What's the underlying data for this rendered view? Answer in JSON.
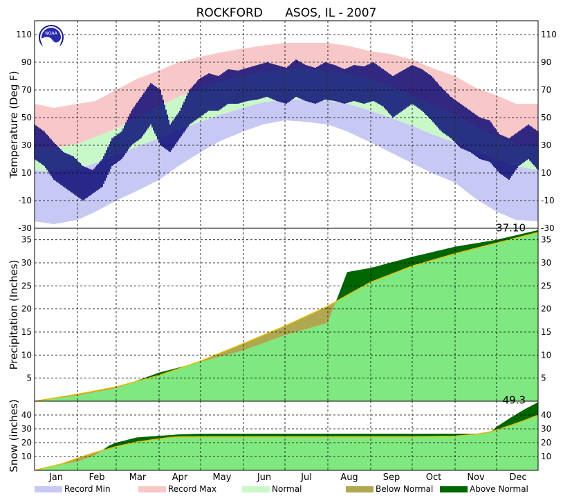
{
  "chart_data": [
    {
      "type": "area",
      "panel": "temperature",
      "title": "ROCKFORD      ASOS, IL - 2007",
      "ylabel": "Temperature (Deg F)",
      "ylim": [
        -30,
        120
      ],
      "yticks": [
        -30,
        -10,
        10,
        30,
        50,
        70,
        90,
        110
      ],
      "grid": true,
      "doy": [
        1,
        15,
        32,
        45,
        60,
        75,
        91,
        105,
        121,
        135,
        152,
        166,
        182,
        196,
        213,
        227,
        244,
        258,
        274,
        288,
        305,
        319,
        335,
        349,
        365
      ],
      "series": [
        {
          "name": "Record Max",
          "values": [
            60,
            57,
            60,
            62,
            70,
            78,
            84,
            90,
            94,
            97,
            100,
            102,
            104,
            104,
            104,
            102,
            98,
            96,
            92,
            86,
            80,
            72,
            66,
            60,
            60
          ]
        },
        {
          "name": "Normal High",
          "values": [
            29,
            28,
            31,
            36,
            42,
            50,
            58,
            65,
            71,
            76,
            80,
            83,
            85,
            85,
            84,
            82,
            78,
            73,
            66,
            59,
            52,
            44,
            36,
            31,
            29
          ]
        },
        {
          "name": "Normal Low",
          "values": [
            12,
            11,
            13,
            17,
            23,
            29,
            35,
            41,
            47,
            52,
            57,
            61,
            63,
            63,
            62,
            60,
            55,
            50,
            44,
            38,
            32,
            26,
            20,
            15,
            12
          ]
        },
        {
          "name": "Record Min",
          "values": [
            -25,
            -27,
            -24,
            -18,
            -10,
            -3,
            5,
            15,
            25,
            33,
            40,
            45,
            48,
            47,
            45,
            40,
            32,
            25,
            17,
            10,
            3,
            -8,
            -18,
            -24,
            -25
          ]
        }
      ],
      "observed": {
        "doy": [
          1,
          8,
          15,
          22,
          29,
          36,
          43,
          50,
          57,
          64,
          71,
          78,
          85,
          92,
          99,
          106,
          113,
          120,
          127,
          134,
          141,
          148,
          155,
          162,
          169,
          176,
          183,
          190,
          197,
          204,
          211,
          218,
          225,
          232,
          239,
          246,
          253,
          260,
          267,
          274,
          281,
          288,
          295,
          302,
          309,
          316,
          323,
          330,
          337,
          344,
          351,
          358,
          365
        ],
        "high": [
          45,
          40,
          32,
          25,
          22,
          15,
          12,
          20,
          35,
          40,
          55,
          65,
          75,
          70,
          45,
          55,
          70,
          78,
          82,
          80,
          85,
          84,
          86,
          88,
          90,
          88,
          86,
          92,
          88,
          86,
          90,
          88,
          85,
          88,
          87,
          90,
          85,
          80,
          84,
          88,
          85,
          80,
          72,
          65,
          60,
          55,
          50,
          48,
          38,
          35,
          40,
          45,
          40
        ],
        "low": [
          20,
          15,
          5,
          0,
          -5,
          -10,
          -5,
          0,
          15,
          20,
          30,
          35,
          45,
          30,
          25,
          35,
          45,
          50,
          55,
          55,
          60,
          60,
          62,
          63,
          65,
          62,
          60,
          65,
          62,
          60,
          63,
          62,
          60,
          62,
          60,
          62,
          58,
          50,
          55,
          60,
          55,
          48,
          40,
          35,
          28,
          25,
          20,
          18,
          10,
          5,
          15,
          20,
          12
        ]
      }
    },
    {
      "type": "area",
      "panel": "precipitation",
      "ylabel": "Precipitation (Inches)",
      "ylim": [
        0,
        37.5
      ],
      "yticks": [
        5,
        10,
        15,
        20,
        25,
        30,
        35
      ],
      "grid": true,
      "annotation": "37.10",
      "doy": [
        1,
        32,
        60,
        91,
        121,
        152,
        182,
        213,
        227,
        244,
        274,
        305,
        335,
        365
      ],
      "normal": [
        0,
        1.5,
        3.1,
        5.6,
        8.7,
        12.5,
        16.3,
        20.6,
        23.0,
        25.8,
        29.3,
        32.0,
        34.3,
        36.6
      ],
      "observed": [
        0,
        1.2,
        2.8,
        6.2,
        8.5,
        11.0,
        14.3,
        17.0,
        28.0,
        28.9,
        31.3,
        33.5,
        35.0,
        37.1
      ]
    },
    {
      "type": "area",
      "panel": "snow",
      "ylabel": "Snow (inches)",
      "ylim": [
        0,
        50
      ],
      "yticks": [
        10,
        20,
        30,
        40
      ],
      "grid": true,
      "annotation": "49.3",
      "doy": [
        1,
        20,
        32,
        45,
        55,
        60,
        75,
        91,
        100,
        105,
        121,
        152,
        182,
        213,
        244,
        274,
        305,
        320,
        330,
        335,
        345,
        355,
        365
      ],
      "normal": [
        0,
        4.5,
        8.8,
        13.0,
        15.7,
        17.2,
        20.5,
        22.8,
        23.9,
        24.2,
        24.3,
        24.3,
        24.3,
        24.3,
        24.3,
        24.3,
        24.7,
        26.1,
        27.7,
        29.2,
        32.5,
        36.0,
        40.0
      ],
      "observed": [
        0,
        4.0,
        6.3,
        11.0,
        18.0,
        20.0,
        23.8,
        25.0,
        25.5,
        26.0,
        26.5,
        26.5,
        26.5,
        26.5,
        26.5,
        26.5,
        26.5,
        26.5,
        27.0,
        31.5,
        38.0,
        44.0,
        49.3
      ]
    }
  ],
  "x_axis": {
    "months": [
      "Jan",
      "Feb",
      "Mar",
      "Apr",
      "May",
      "Jun",
      "Jul",
      "Aug",
      "Sep",
      "Oct",
      "Nov",
      "Dec"
    ],
    "month_start_doy": [
      1,
      32,
      60,
      91,
      121,
      152,
      182,
      213,
      244,
      274,
      305,
      335
    ]
  },
  "legend": {
    "placement": "bottom",
    "items": [
      {
        "label": "Record Min",
        "color": "#c8c8f5"
      },
      {
        "label": "Record Max",
        "color": "#f8c8c8"
      },
      {
        "label": "Normal",
        "color": "#c8f8c8"
      },
      {
        "label": "Below Normal",
        "color": "#b0a850"
      },
      {
        "label": "Above Normal",
        "color": "#006600"
      }
    ]
  },
  "colors": {
    "observed_temp": "#000070",
    "precip_fill": "#80e880",
    "normal_line": "#e0c000",
    "below_normal": "#b0a850",
    "above_normal": "#006600",
    "normal_band": "#c8f8c8",
    "record_max": "#f8c8c8",
    "record_min": "#c8c8f5"
  },
  "logo": {
    "text": "NOAA",
    "icon": "noaa-logo-icon"
  }
}
